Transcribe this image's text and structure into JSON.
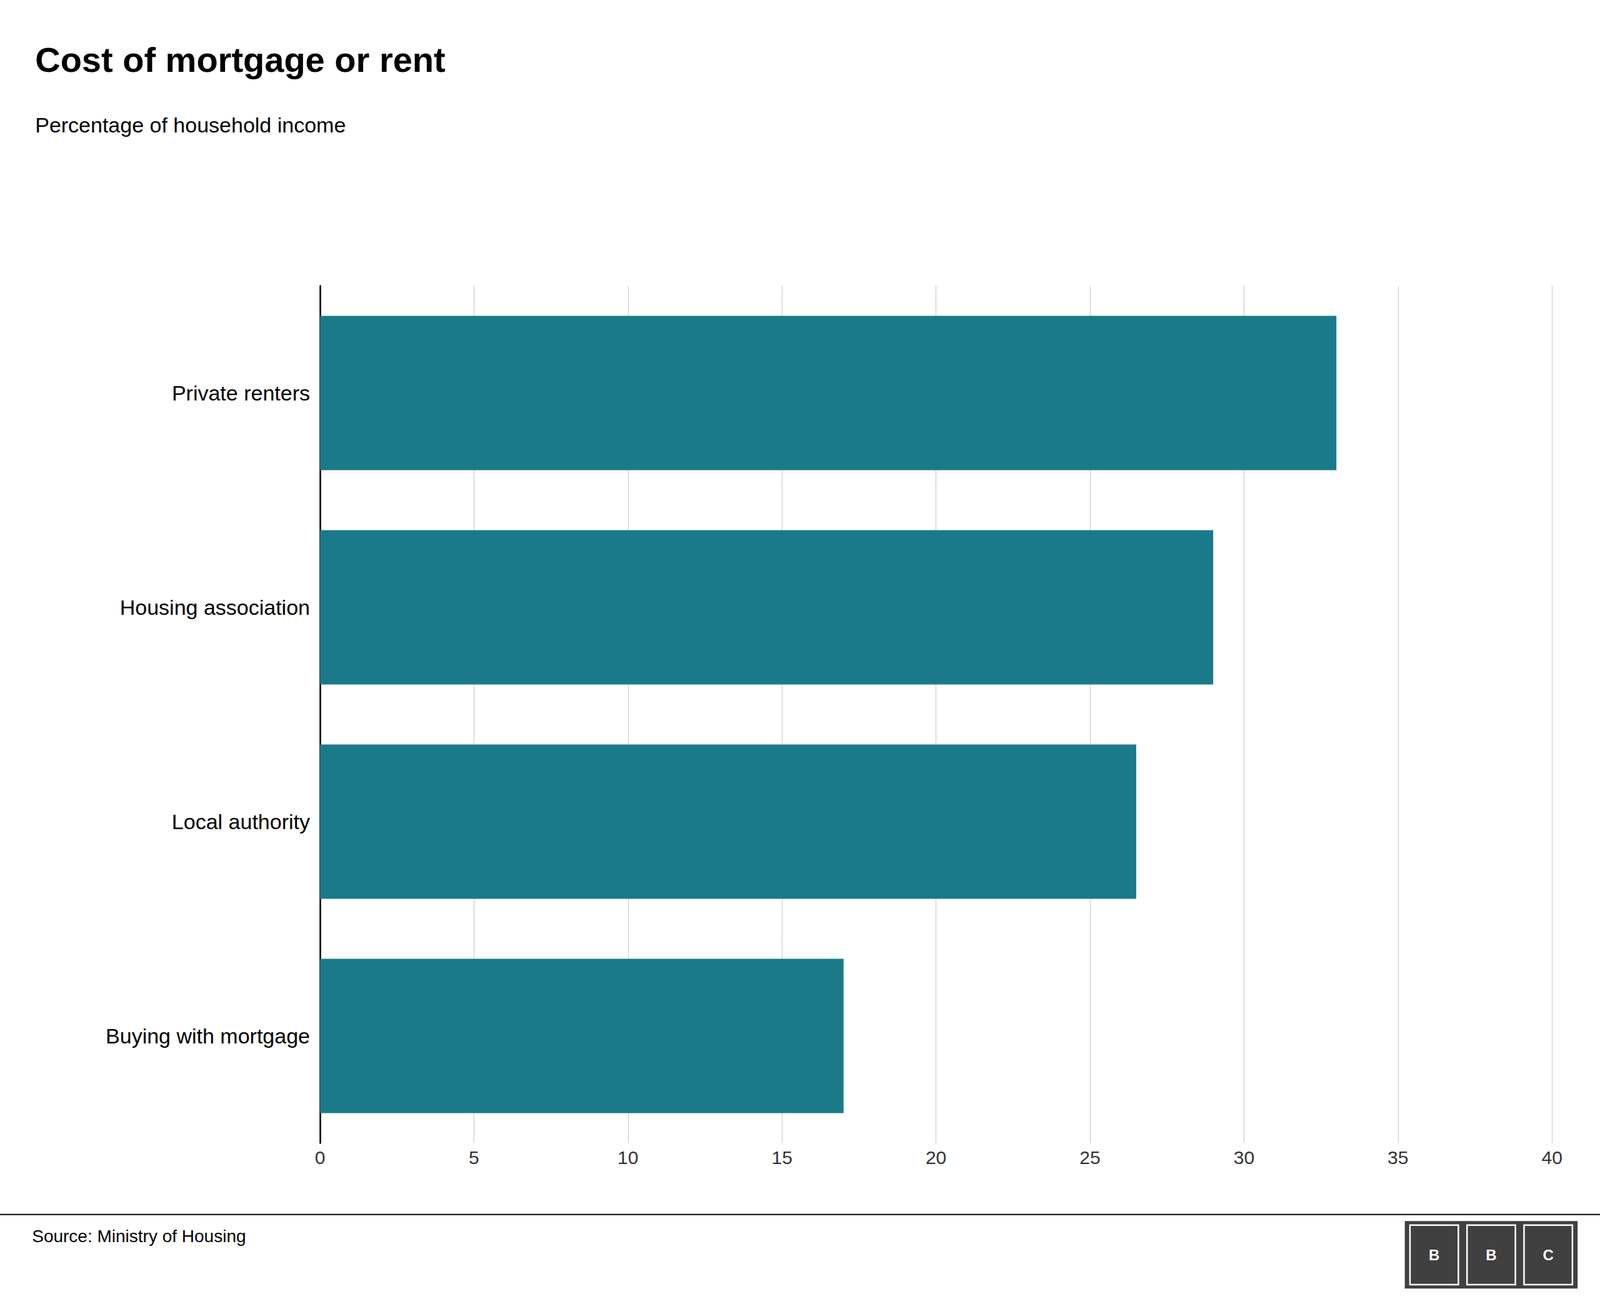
{
  "chart_data": {
    "type": "bar",
    "title": "Cost of mortgage or rent",
    "subtitle": "Percentage of household income",
    "categories": [
      "Private renters",
      "Housing association",
      "Local authority",
      "Buying with mortgage"
    ],
    "values": [
      33,
      29,
      26.5,
      17
    ],
    "color": "#1a7a8a",
    "orientation": "horizontal",
    "xlim": [
      0,
      40
    ],
    "xticks": [
      0,
      5,
      10,
      15,
      20,
      25,
      30,
      35,
      40
    ],
    "grid": true,
    "source": "Source: Ministry of Housing",
    "logo": [
      "B",
      "B",
      "C"
    ]
  }
}
